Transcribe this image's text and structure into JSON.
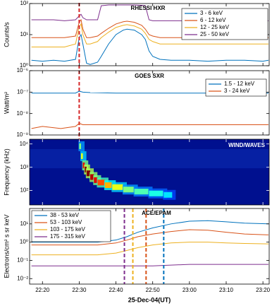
{
  "chart_data": [
    {
      "type": "line",
      "title": "RHESSI HXR",
      "y_label": "Counts/s",
      "yscale": "log",
      "xlim": [
        1336.5,
        1401.7
      ],
      "ylim": [
        1,
        100
      ],
      "yticks": [
        {
          "value": 1,
          "label": "10⁰"
        },
        {
          "value": 10,
          "label": "10¹"
        },
        {
          "value": 100,
          "label": "10²"
        }
      ],
      "x": [
        1337,
        1340,
        1343,
        1346,
        1349,
        1350,
        1350.5,
        1351,
        1352,
        1353,
        1355,
        1356,
        1358,
        1360,
        1362,
        1363,
        1365,
        1367,
        1368,
        1369,
        1370,
        1372,
        1375,
        1380,
        1385,
        1390,
        1395,
        1400,
        1401.5
      ],
      "series": [
        {
          "name": "3 - 6 keV",
          "color": "#0072bd",
          "values": [
            1.5,
            1.4,
            1.5,
            1.4,
            1.6,
            8,
            10,
            5,
            1.2,
            1.1,
            1.3,
            2,
            5,
            10,
            14,
            15,
            14,
            10,
            7,
            3,
            2,
            1.6,
            1.5,
            1.5,
            1.4,
            1.5,
            1.5,
            1.4,
            1.5
          ]
        },
        {
          "name": "6 - 12 keV",
          "color": "#d95319",
          "values": [
            8,
            8,
            8,
            8,
            9,
            25,
            30,
            15,
            8,
            8,
            9,
            11,
            16,
            22,
            26,
            27,
            25,
            20,
            15,
            10,
            9,
            8,
            8,
            8,
            8,
            8,
            8,
            8,
            8
          ]
        },
        {
          "name": "12 - 25 keV",
          "color": "#edb120",
          "values": [
            4,
            4,
            4,
            4,
            5,
            18,
            22,
            10,
            5,
            5,
            6,
            8,
            12,
            17,
            20,
            21,
            19,
            15,
            11,
            7,
            6,
            5,
            5,
            5,
            5,
            5,
            5,
            5,
            5
          ]
        },
        {
          "name": "25 - 50 keV",
          "color": "#7e2f8e",
          "values": [
            30,
            30,
            30,
            28,
            30,
            40,
            45,
            35,
            30,
            30,
            30,
            85,
            90,
            90,
            90,
            90,
            90,
            88,
            85,
            30,
            28,
            28,
            28,
            28,
            28,
            28,
            28,
            28,
            28
          ]
        }
      ],
      "vlines": [
        {
          "x": 1350,
          "color": "#d62728"
        }
      ]
    },
    {
      "type": "line",
      "title": "GOES SXR",
      "y_label": "Watt/m²",
      "yscale": "log",
      "xlim": [
        1336.5,
        1401.7
      ],
      "ylim": [
        1e-09,
        1e-06
      ],
      "yticks": [
        {
          "value": 1e-09,
          "label": "10⁻⁹"
        },
        {
          "value": 1e-08,
          "label": "10⁻⁸"
        },
        {
          "value": 1e-07,
          "label": "10⁻⁷"
        },
        {
          "value": 1e-06,
          "label": "10⁻⁶"
        }
      ],
      "x": [
        1337,
        1340,
        1345,
        1349,
        1350,
        1351,
        1353,
        1360,
        1370,
        1380,
        1390,
        1401.5
      ],
      "series": [
        {
          "name": "1.5 - 12 keV",
          "color": "#0072bd",
          "values": [
            9e-08,
            9e-08,
            9e-08,
            9e-08,
            1.1e-07,
            1e-07,
            9.5e-08,
            9e-08,
            9e-08,
            9e-08,
            9e-08,
            9e-08
          ]
        },
        {
          "name": "3 - 24 keV",
          "color": "#d95319",
          "values": [
            2e-09,
            2.5e-09,
            2e-09,
            2.5e-09,
            3.5e-09,
            3e-09,
            3e-09,
            3e-09,
            3e-09,
            3e-09,
            3e-09,
            3e-09
          ]
        }
      ]
    },
    {
      "type": "heatmap",
      "title": "WIND/WAVES",
      "y_label": "Frequency (kHz)",
      "yscale": "log",
      "xlim": [
        1336.5,
        1401.7
      ],
      "ylim": [
        24,
        16000
      ],
      "yticks": [
        {
          "value": 100,
          "label": "10²"
        },
        {
          "value": 1000,
          "label": "10³"
        },
        {
          "value": 10000,
          "label": "10⁴"
        }
      ],
      "x": [
        1350,
        1350.5,
        1351,
        1351.5,
        1352,
        1353,
        1354,
        1355,
        1357,
        1359,
        1362,
        1365,
        1369,
        1373
      ],
      "y": [
        8000,
        3000,
        1200,
        800,
        550,
        380,
        280,
        220,
        170,
        140,
        110,
        90,
        75,
        65
      ],
      "values": [
        0.5,
        0.6,
        0.9,
        1,
        1,
        0.95,
        0.9,
        0.8,
        0.7,
        0.6,
        0.5,
        0.45,
        0.4,
        0.35
      ]
    },
    {
      "type": "line",
      "title": "ACE/EPAM",
      "y_label": "Electrons/cm² s sr keV",
      "x_label": "25-Dec-04(UT)",
      "yscale": "log",
      "xlim": [
        1336.5,
        1401.7
      ],
      "ylim": [
        0.005,
        70
      ],
      "xticks": [
        {
          "value": 1340,
          "label": "22:20"
        },
        {
          "value": 1350,
          "label": "22:30"
        },
        {
          "value": 1360,
          "label": "22:40"
        },
        {
          "value": 1370,
          "label": "22:50"
        },
        {
          "value": 1380,
          "label": "23:00"
        },
        {
          "value": 1390,
          "label": "23:10"
        },
        {
          "value": 1400,
          "label": "23:20"
        }
      ],
      "yticks": [
        {
          "value": 0.01,
          "label": "10⁻²"
        },
        {
          "value": 0.1,
          "label": "10⁻¹"
        },
        {
          "value": 1,
          "label": "10⁰"
        },
        {
          "value": 10,
          "label": "10¹"
        }
      ],
      "x": [
        1337,
        1345,
        1355,
        1360,
        1363,
        1366,
        1370,
        1375,
        1380,
        1385,
        1390,
        1395,
        1401.5
      ],
      "series": [
        {
          "name": "38 - 53 keV",
          "color": "#0072bd",
          "values": [
            1,
            1,
            1,
            1.3,
            2,
            3.5,
            6,
            10,
            14,
            15,
            13,
            11,
            10
          ]
        },
        {
          "name": "53 - 103 keV",
          "color": "#d95319",
          "values": [
            0.7,
            0.7,
            0.7,
            0.9,
            1.3,
            2,
            2.8,
            3.8,
            4.8,
            4.5,
            3.5,
            2.8,
            2.5
          ]
        },
        {
          "name": "103 - 175 keV",
          "color": "#edb120",
          "values": [
            0.2,
            0.2,
            0.2,
            0.25,
            0.35,
            0.5,
            0.7,
            0.9,
            1,
            1,
            0.9,
            0.85,
            0.8
          ]
        },
        {
          "name": "175 - 315 keV",
          "color": "#7e2f8e",
          "values": [
            0.05,
            0.05,
            0.05,
            0.05,
            0.05,
            0.05,
            0.05,
            0.055,
            0.06,
            0.06,
            0.06,
            0.06,
            0.06
          ]
        }
      ],
      "vlines": [
        {
          "x": 1362.3,
          "color": "#7e2f8e"
        },
        {
          "x": 1364.6,
          "color": "#edb120"
        },
        {
          "x": 1368.2,
          "color": "#d95319"
        },
        {
          "x": 1373,
          "color": "#0072bd"
        }
      ]
    }
  ]
}
